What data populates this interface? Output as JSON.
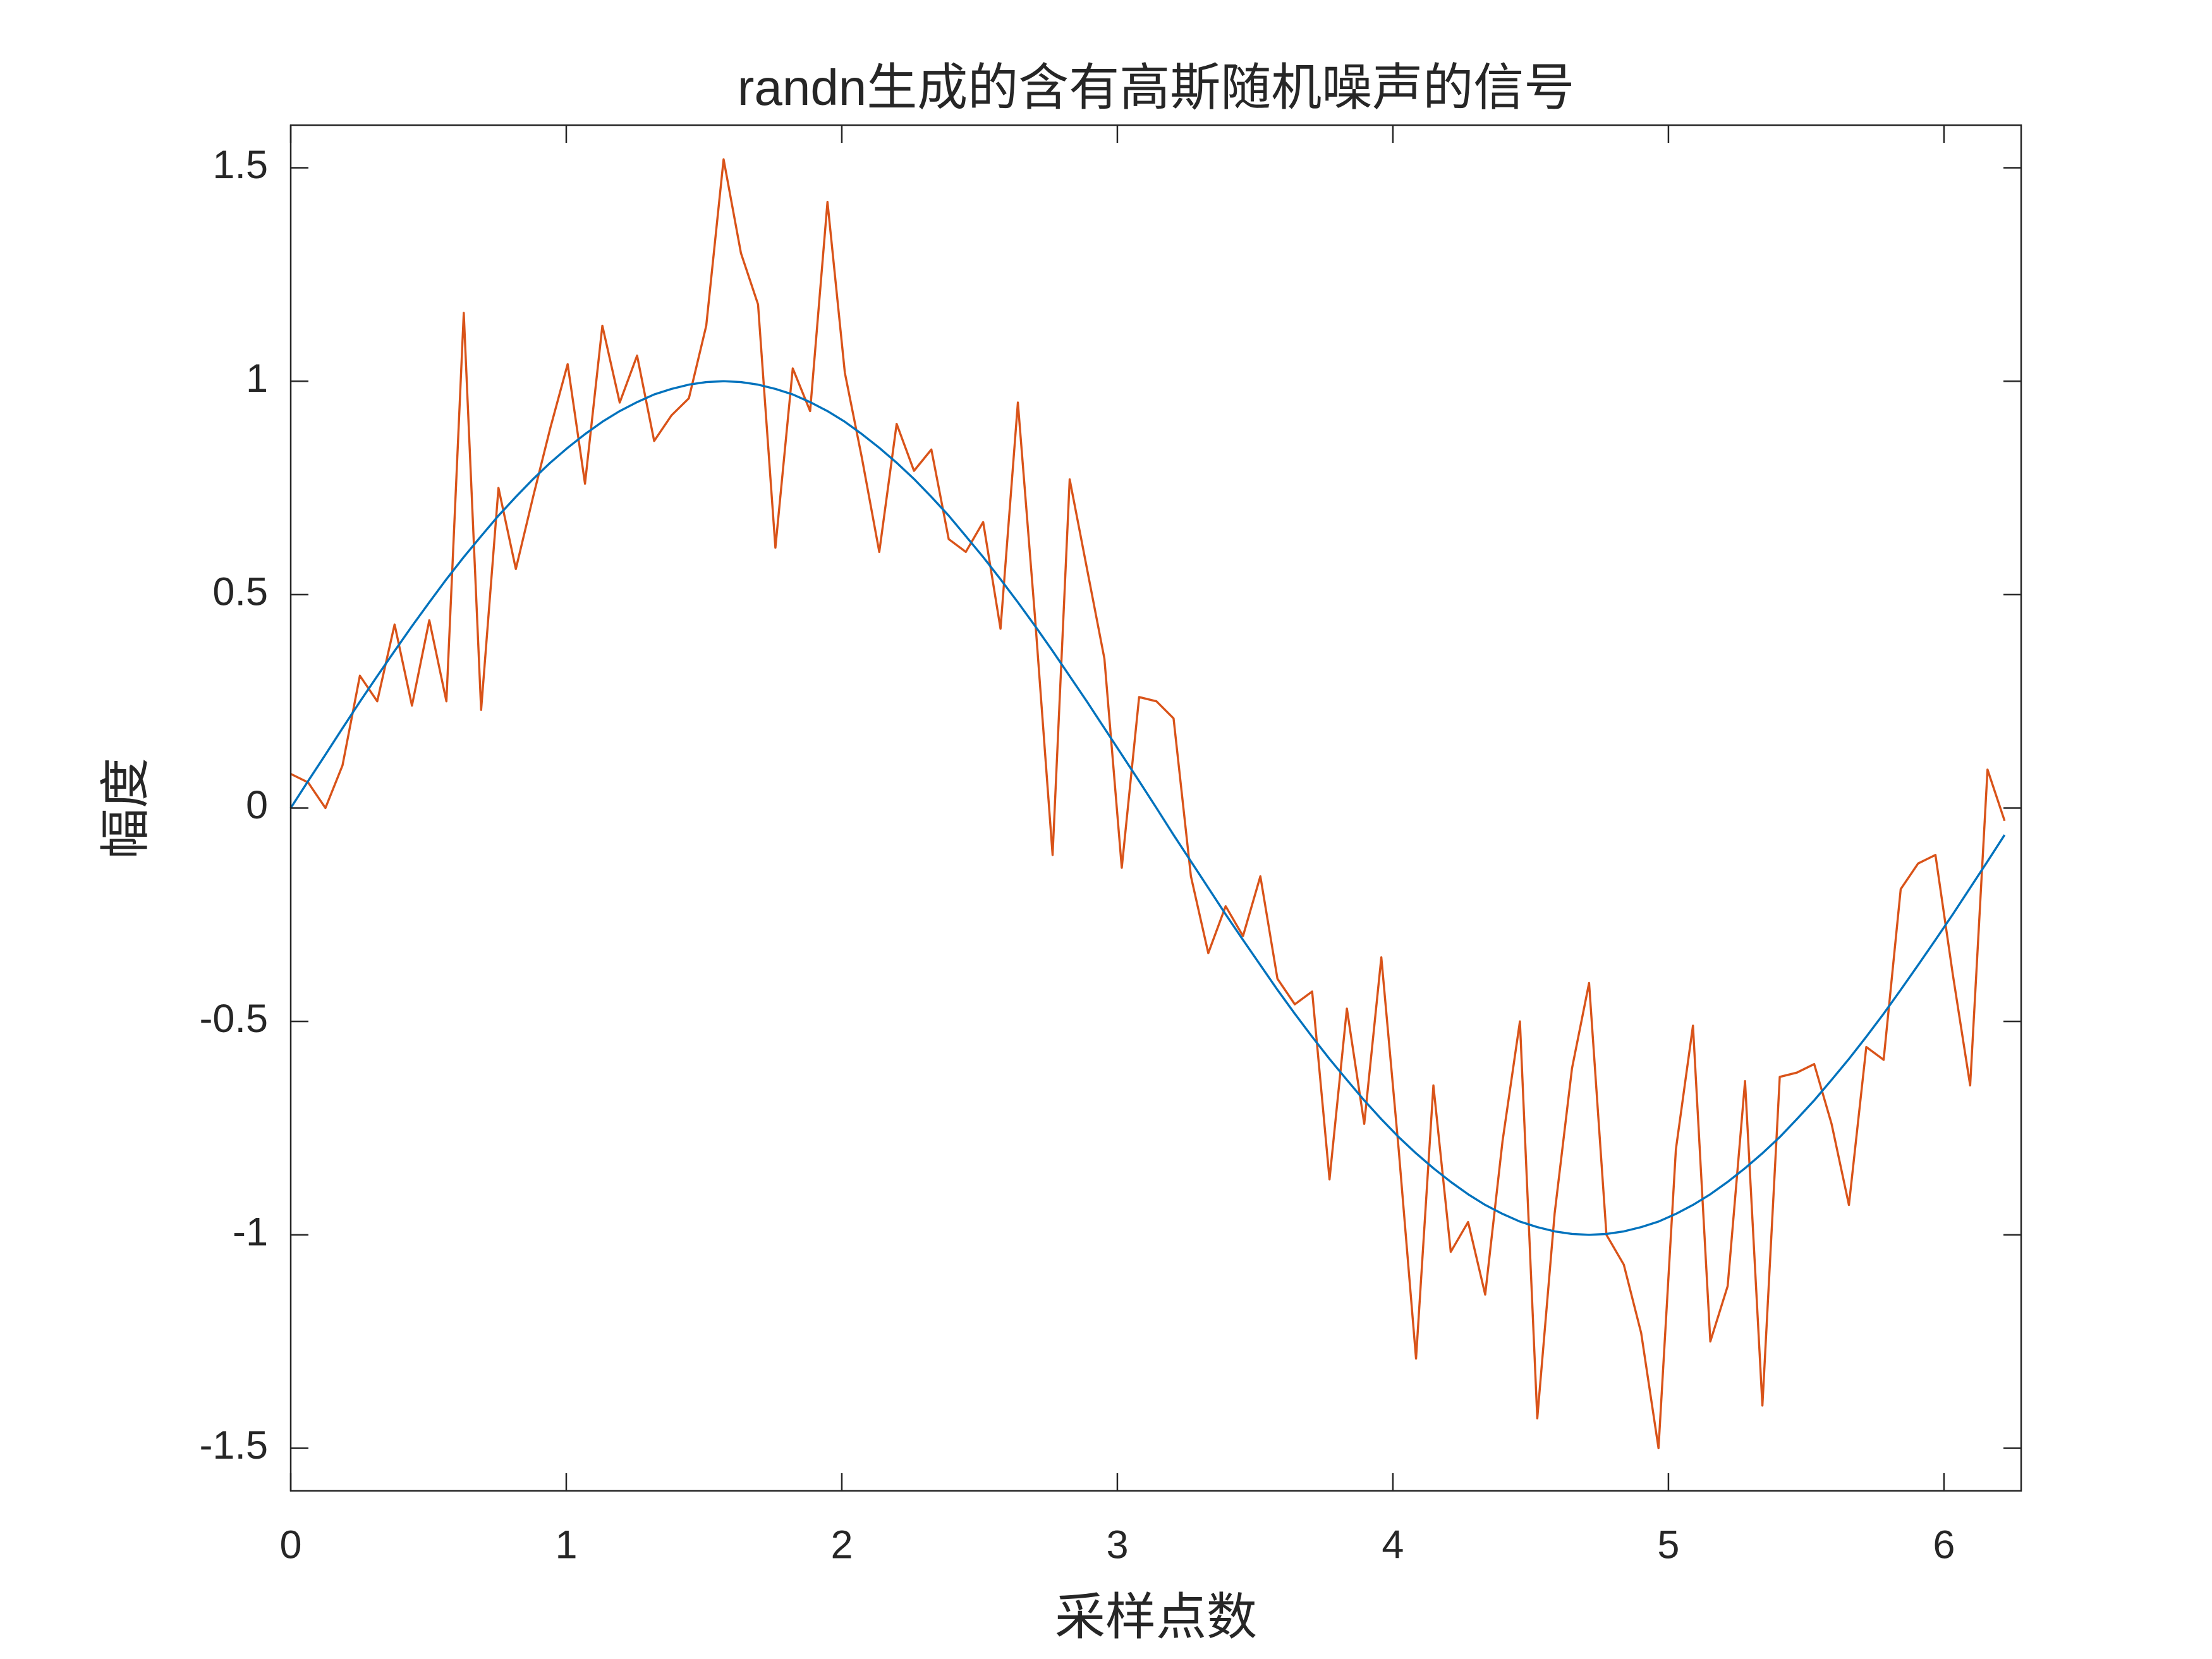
{
  "chart_data": {
    "type": "line",
    "title": "randn生成的含有高斯随机噪声的信号",
    "x_label": "采样点数",
    "y_label": "幅度",
    "x": [
      0,
      0.063,
      0.126,
      0.188,
      0.251,
      0.314,
      0.377,
      0.44,
      0.503,
      0.565,
      0.628,
      0.691,
      0.754,
      0.817,
      0.88,
      0.942,
      1.005,
      1.068,
      1.131,
      1.194,
      1.257,
      1.319,
      1.382,
      1.445,
      1.508,
      1.571,
      1.634,
      1.696,
      1.759,
      1.822,
      1.885,
      1.948,
      2.011,
      2.073,
      2.136,
      2.199,
      2.262,
      2.325,
      2.388,
      2.45,
      2.513,
      2.576,
      2.639,
      2.702,
      2.765,
      2.827,
      2.89,
      2.953,
      3.016,
      3.079,
      3.142,
      3.204,
      3.267,
      3.33,
      3.393,
      3.456,
      3.519,
      3.581,
      3.644,
      3.707,
      3.77,
      3.833,
      3.896,
      3.958,
      4.021,
      4.084,
      4.147,
      4.21,
      4.273,
      4.335,
      4.398,
      4.461,
      4.524,
      4.587,
      4.65,
      4.712,
      4.775,
      4.838,
      4.901,
      4.964,
      5.027,
      5.089,
      5.152,
      5.215,
      5.278,
      5.341,
      5.404,
      5.466,
      5.529,
      5.592,
      5.655,
      5.718,
      5.781,
      5.843,
      5.906,
      5.969,
      6.032,
      6.095,
      6.158,
      6.22
    ],
    "series": [
      {
        "color": "#D95319",
        "values": [
          0.08,
          0.06,
          0.0,
          0.1,
          0.31,
          0.25,
          0.43,
          0.24,
          0.44,
          0.25,
          1.16,
          0.23,
          0.75,
          0.56,
          0.73,
          0.89,
          1.04,
          0.76,
          1.13,
          0.95,
          1.06,
          0.86,
          0.92,
          0.96,
          1.13,
          1.52,
          1.3,
          1.18,
          0.61,
          1.03,
          0.93,
          1.42,
          1.02,
          0.82,
          0.6,
          0.9,
          0.79,
          0.84,
          0.63,
          0.6,
          0.67,
          0.42,
          0.95,
          0.44,
          -0.11,
          0.77,
          0.56,
          0.35,
          -0.14,
          0.26,
          0.25,
          0.21,
          -0.16,
          -0.34,
          -0.23,
          -0.3,
          -0.16,
          -0.4,
          -0.46,
          -0.43,
          -0.87,
          -0.47,
          -0.74,
          -0.35,
          -0.8,
          -1.29,
          -0.65,
          -1.04,
          -0.97,
          -1.14,
          -0.78,
          -0.5,
          -1.43,
          -0.95,
          -0.61,
          -0.41,
          -1.0,
          -1.07,
          -1.23,
          -1.5,
          -0.8,
          -0.51,
          -1.25,
          -1.12,
          -0.64,
          -1.4,
          -0.63,
          -0.62,
          -0.6,
          -0.74,
          -0.93,
          -0.56,
          -0.59,
          -0.19,
          -0.13,
          -0.11,
          -0.39,
          -0.65,
          0.09,
          -0.03
        ]
      },
      {
        "color": "#0072BD",
        "values": [
          0,
          0.063,
          0.125,
          0.187,
          0.249,
          0.309,
          0.368,
          0.426,
          0.482,
          0.536,
          0.588,
          0.637,
          0.685,
          0.729,
          0.771,
          0.809,
          0.844,
          0.876,
          0.905,
          0.93,
          0.951,
          0.969,
          0.982,
          0.992,
          0.998,
          1,
          0.998,
          0.992,
          0.982,
          0.969,
          0.951,
          0.93,
          0.905,
          0.876,
          0.844,
          0.809,
          0.771,
          0.729,
          0.685,
          0.637,
          0.588,
          0.536,
          0.482,
          0.426,
          0.368,
          0.309,
          0.249,
          0.187,
          0.125,
          0.063,
          0,
          -0.063,
          -0.125,
          -0.187,
          -0.249,
          -0.309,
          -0.368,
          -0.426,
          -0.482,
          -0.536,
          -0.588,
          -0.637,
          -0.685,
          -0.729,
          -0.771,
          -0.809,
          -0.844,
          -0.876,
          -0.905,
          -0.93,
          -0.951,
          -0.969,
          -0.982,
          -0.992,
          -0.998,
          -1,
          -0.998,
          -0.992,
          -0.982,
          -0.969,
          -0.951,
          -0.93,
          -0.905,
          -0.876,
          -0.844,
          -0.809,
          -0.771,
          -0.729,
          -0.685,
          -0.637,
          -0.588,
          -0.536,
          -0.482,
          -0.426,
          -0.368,
          -0.309,
          -0.249,
          -0.187,
          -0.125,
          -0.063
        ]
      }
    ],
    "xlim": [
      0,
      6.28
    ],
    "xticks": [
      0,
      1,
      2,
      3,
      4,
      5,
      6
    ],
    "ylim": [
      -1.6,
      1.6
    ],
    "yticks": [
      -1.5,
      -1,
      -0.5,
      0,
      0.5,
      1,
      1.5
    ]
  }
}
